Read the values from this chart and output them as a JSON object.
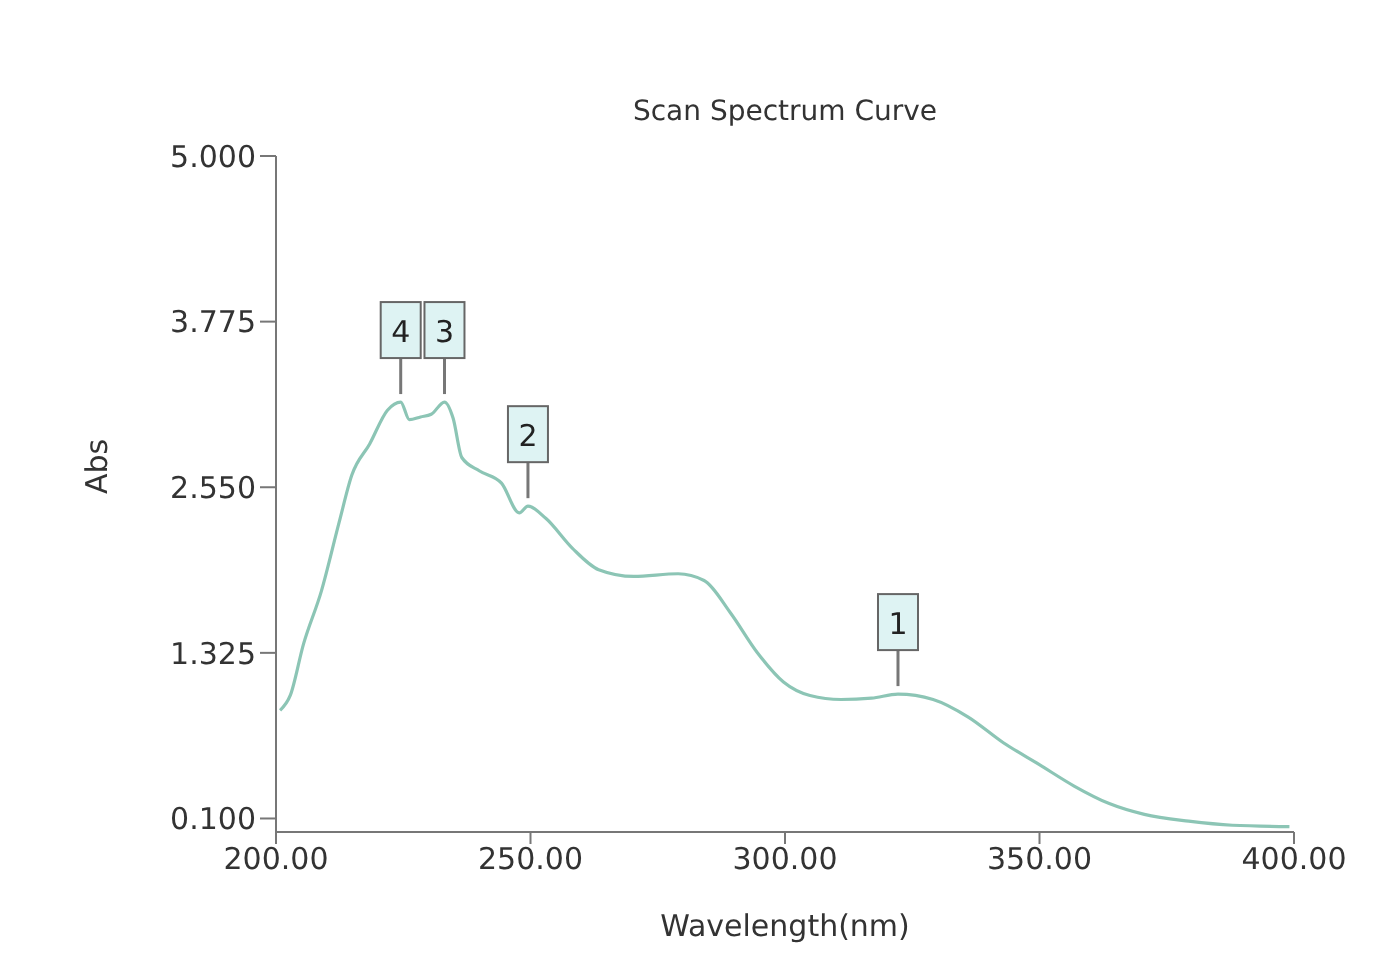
{
  "chart_data": {
    "type": "line",
    "title": "Scan Spectrum Curve",
    "xlabel": "Wavelength(nm)",
    "ylabel": "Abs",
    "x": [
      200.8,
      202.8,
      205.4,
      208.9,
      212.4,
      214.9,
      218.4,
      221.9,
      224.5,
      226.2,
      228.4,
      230.5,
      233.1,
      234.8,
      236.5,
      240,
      244.3,
      247.8,
      249.5,
      253,
      258.2,
      263.4,
      270.3,
      279,
      284.1,
      289.3,
      294.5,
      299.7,
      304.9,
      311,
      317,
      322.2,
      329.1,
      336,
      342.9,
      349.9,
      356.8,
      363.7,
      370.6,
      379.3,
      387.9,
      399.1
    ],
    "series": [
      {
        "color": "#8cc5b5",
        "values": [
          0.9,
          1.01,
          1.39,
          1.78,
          2.29,
          2.64,
          2.87,
          3.12,
          3.18,
          3.05,
          3.07,
          3.09,
          3.18,
          3.06,
          2.77,
          2.67,
          2.58,
          2.36,
          2.41,
          2.32,
          2.1,
          1.94,
          1.89,
          1.91,
          1.86,
          1.62,
          1.33,
          1.11,
          1.01,
          0.98,
          0.99,
          1.02,
          0.98,
          0.85,
          0.66,
          0.5,
          0.34,
          0.21,
          0.13,
          0.08,
          0.05,
          0.04
        ]
      }
    ],
    "xlim": [
      200,
      400
    ],
    "xticks": [
      {
        "value": 200,
        "label": "200.00"
      },
      {
        "value": 250,
        "label": "250.00"
      },
      {
        "value": 300,
        "label": "300.00"
      },
      {
        "value": 350,
        "label": "350.00"
      },
      {
        "value": 400,
        "label": "400.00"
      }
    ],
    "ylim": [
      0,
      5
    ],
    "yticks": [
      {
        "value": 0.1,
        "label": "0.100"
      },
      {
        "value": 1.325,
        "label": "1.325"
      },
      {
        "value": 2.55,
        "label": "2.550"
      },
      {
        "value": 3.775,
        "label": "3.775"
      },
      {
        "value": 5,
        "label": "5.000"
      }
    ],
    "grid": false,
    "legend": false,
    "marker": "none",
    "line_style": "solid",
    "annotations": [
      {
        "text": "1",
        "x": 322.2,
        "y": 1.02
      },
      {
        "text": "2",
        "x": 249.5,
        "y": 2.41
      },
      {
        "text": "3",
        "x": 233.1,
        "y": 3.18
      },
      {
        "text": "4",
        "x": 224.5,
        "y": 3.18
      }
    ]
  }
}
